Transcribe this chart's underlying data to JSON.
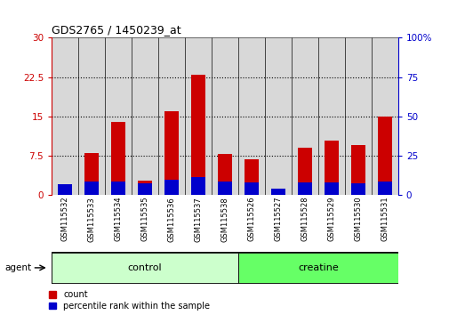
{
  "title": "GDS2765 / 1450239_at",
  "categories": [
    "GSM115532",
    "GSM115533",
    "GSM115534",
    "GSM115535",
    "GSM115536",
    "GSM115537",
    "GSM115538",
    "GSM115526",
    "GSM115527",
    "GSM115528",
    "GSM115529",
    "GSM115530",
    "GSM115531"
  ],
  "count_values": [
    2.2,
    8.0,
    14.0,
    2.8,
    16.0,
    23.0,
    7.8,
    6.8,
    1.2,
    9.0,
    10.5,
    9.5,
    15.0
  ],
  "percentile_values": [
    7.0,
    8.5,
    9.0,
    7.5,
    10.0,
    11.5,
    8.5,
    8.0,
    4.5,
    8.0,
    8.0,
    7.5,
    9.0
  ],
  "count_color": "#cc0000",
  "percentile_color": "#0000cc",
  "left_ylim": [
    0,
    30
  ],
  "right_ylim": [
    0,
    100
  ],
  "left_yticks": [
    0,
    7.5,
    15,
    22.5,
    30
  ],
  "right_yticks": [
    0,
    25,
    50,
    75,
    100
  ],
  "left_ytick_labels": [
    "0",
    "7.5",
    "15",
    "22.5",
    "30"
  ],
  "right_ytick_labels": [
    "0",
    "25",
    "50",
    "75",
    "100%"
  ],
  "groups": [
    {
      "label": "control",
      "indices": [
        0,
        1,
        2,
        3,
        4,
        5,
        6
      ],
      "color": "#ccffcc"
    },
    {
      "label": "creatine",
      "indices": [
        7,
        8,
        9,
        10,
        11,
        12
      ],
      "color": "#66ff66"
    }
  ],
  "group_label_prefix": "agent",
  "bar_width": 0.55,
  "background_color": "#ffffff",
  "col_bg_color": "#d8d8d8",
  "legend_labels": [
    "count",
    "percentile rank within the sample"
  ],
  "dotted_line_color": "#000000"
}
